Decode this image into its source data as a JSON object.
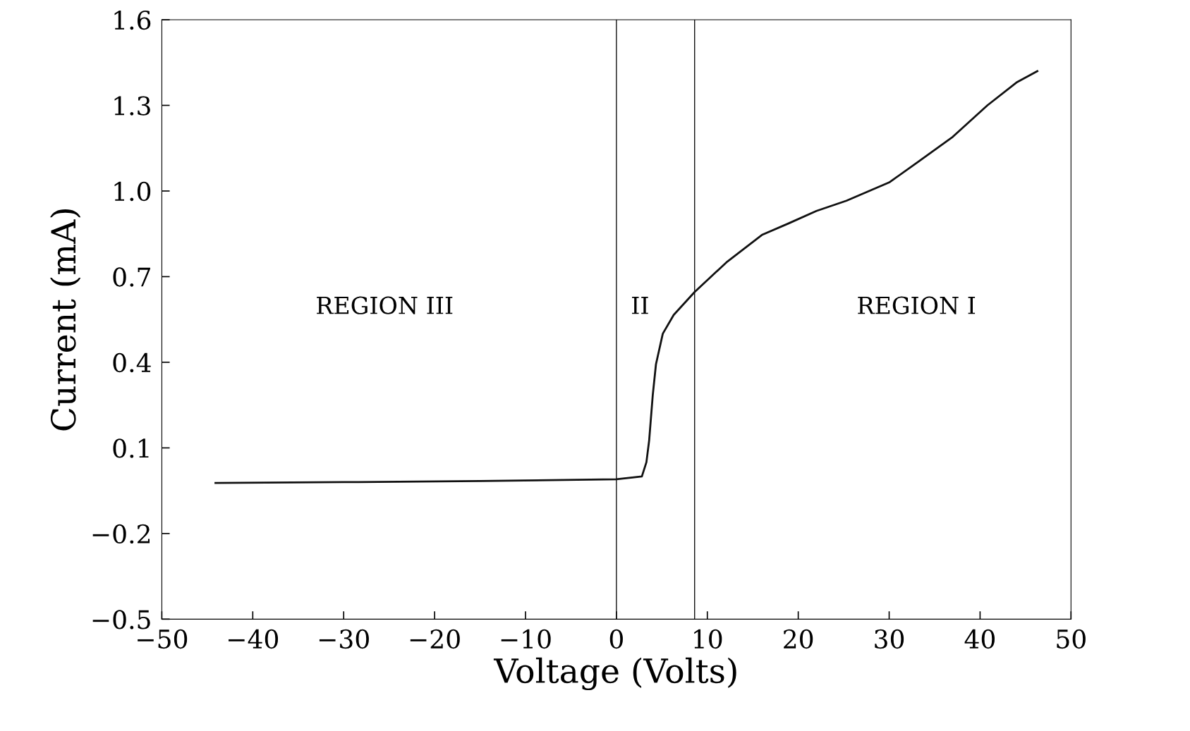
{
  "chart_data": {
    "type": "line",
    "xlabel": "Voltage (Volts)",
    "ylabel": "Current (mA)",
    "x": [
      -44.1,
      -30,
      -15,
      0,
      2.8,
      3.3,
      3.6,
      4.0,
      4.35,
      5.1,
      6.3,
      8.6,
      12.1,
      16,
      18.9,
      22,
      25.3,
      30,
      33.1,
      37,
      40.8,
      44,
      46.3
    ],
    "series": [
      {
        "color": "#111111",
        "values": [
          -0.023,
          -0.02,
          -0.016,
          -0.01,
          0.0,
          0.05,
          0.126,
          0.286,
          0.393,
          0.5,
          0.566,
          0.646,
          0.75,
          0.846,
          0.886,
          0.93,
          0.966,
          1.03,
          1.1,
          1.19,
          1.3,
          1.38,
          1.42
        ]
      }
    ],
    "xlim": [
      -50,
      50
    ],
    "xticks": [
      -50,
      -40,
      -30,
      -20,
      -10,
      0,
      10,
      20,
      30,
      40,
      50
    ],
    "ylim": [
      -0.5,
      1.6
    ],
    "yticks": [
      -0.5,
      -0.2,
      0.1,
      0.4,
      0.7,
      {
        "value": 1,
        "label": "1.0"
      },
      1.3,
      1.6
    ],
    "ref_lines": [
      {
        "axis": "x",
        "value": 0,
        "color": "#111111"
      },
      {
        "axis": "x",
        "value": 8.6,
        "color": "#111111"
      }
    ],
    "annotations": [
      "REGION III",
      "II",
      "REGION I"
    ],
    "grid": false,
    "legend": false
  }
}
